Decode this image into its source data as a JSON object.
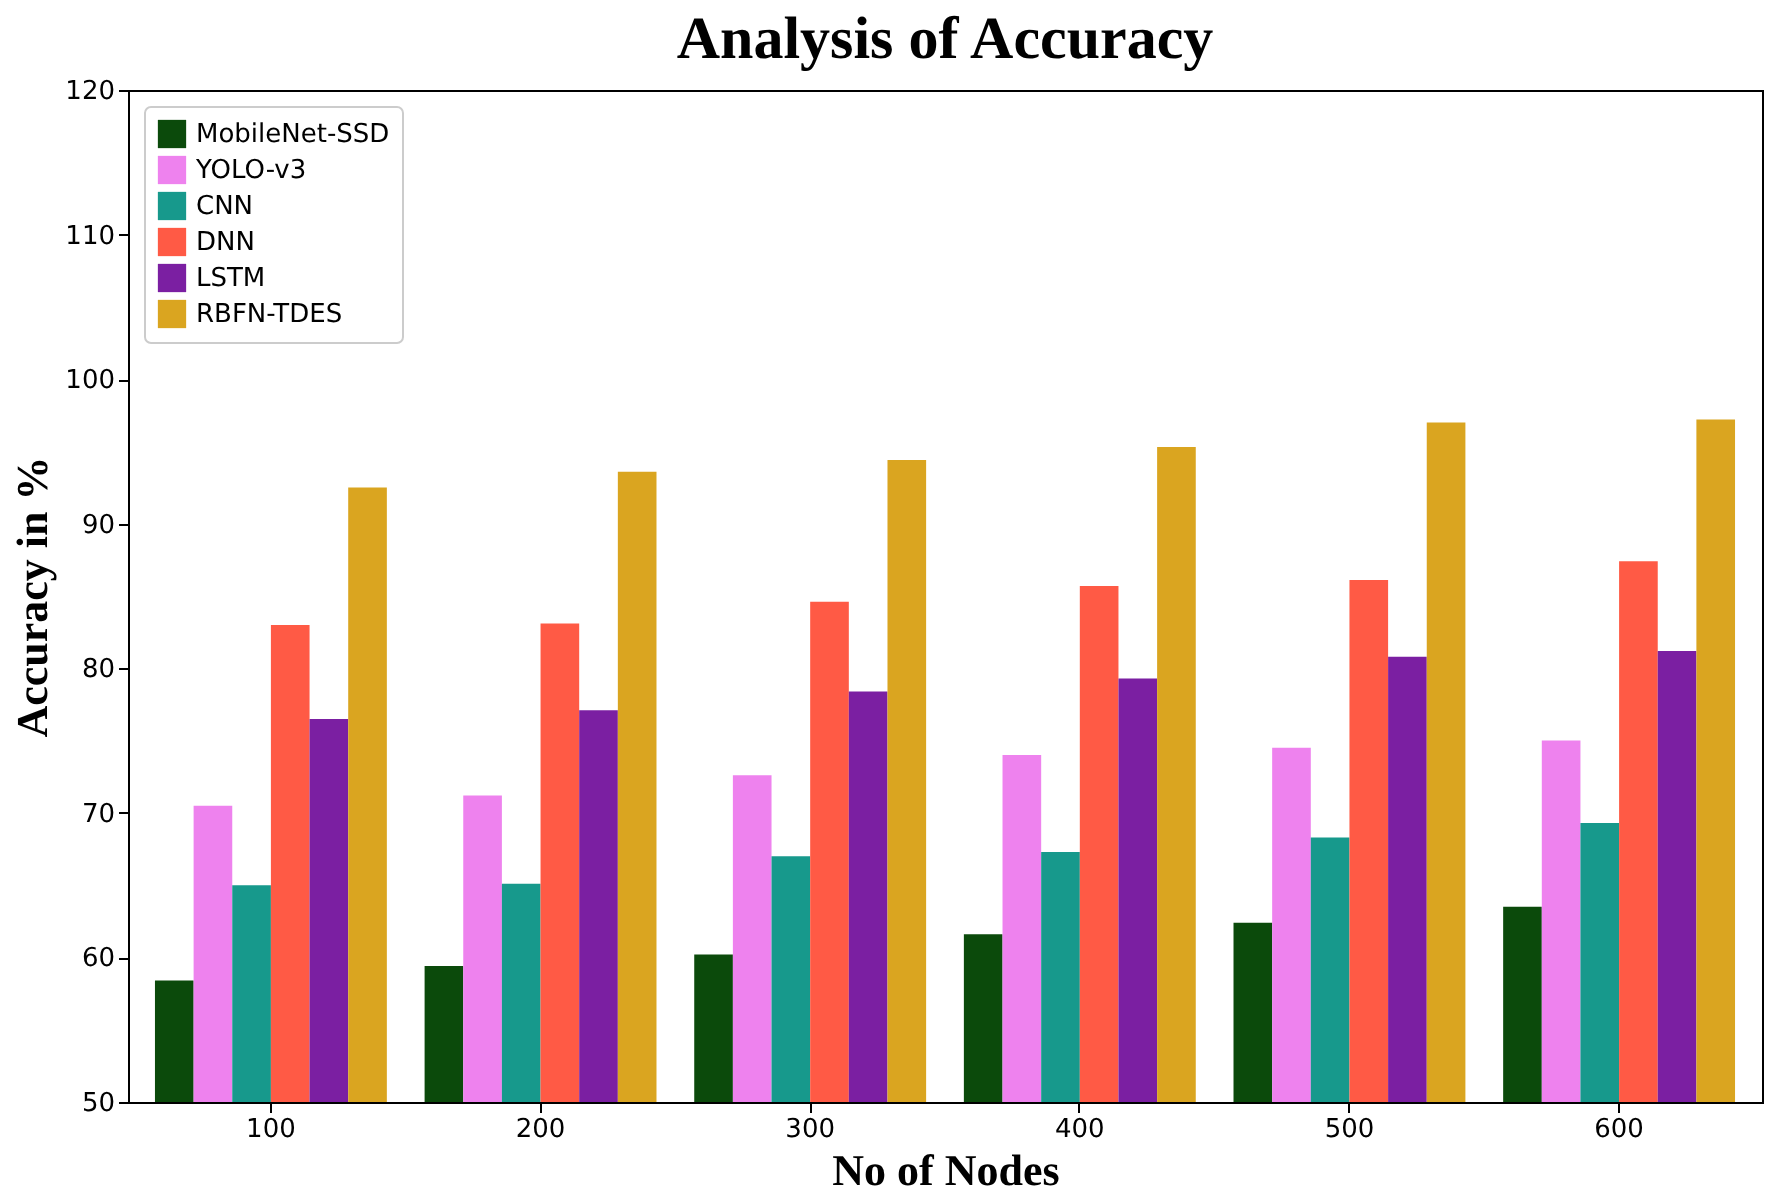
{
  "chart_data": {
    "type": "bar",
    "title": "Analysis of Accuracy",
    "xlabel": "No of Nodes",
    "ylabel": "Accuracy in %",
    "categories": [
      "100",
      "200",
      "300",
      "400",
      "500",
      "600"
    ],
    "series": [
      {
        "name": "MobileNet-SSD",
        "color": "#0b4a0b",
        "values": [
          58.4,
          59.4,
          60.2,
          61.6,
          62.4,
          63.5
        ]
      },
      {
        "name": "YOLO-v3",
        "color": "#ee82ee",
        "values": [
          70.5,
          71.2,
          72.6,
          74.0,
          74.5,
          75.0
        ]
      },
      {
        "name": "CNN",
        "color": "#17998c",
        "values": [
          65.0,
          65.1,
          67.0,
          67.3,
          68.3,
          69.3
        ]
      },
      {
        "name": "DNN",
        "color": "#ff5a45",
        "values": [
          83.0,
          83.1,
          84.6,
          85.7,
          86.1,
          87.4
        ]
      },
      {
        "name": "LSTM",
        "color": "#7b1fa2",
        "values": [
          76.5,
          77.1,
          78.4,
          79.3,
          80.8,
          81.2
        ]
      },
      {
        "name": "RBFN-TDES",
        "color": "#daa520",
        "values": [
          92.5,
          93.6,
          94.4,
          95.3,
          97.0,
          97.2
        ]
      }
    ],
    "ylim": [
      50,
      120
    ],
    "yticks": [
      50,
      60,
      70,
      80,
      90,
      100,
      110,
      120
    ],
    "grid": false,
    "legend": "top left"
  }
}
